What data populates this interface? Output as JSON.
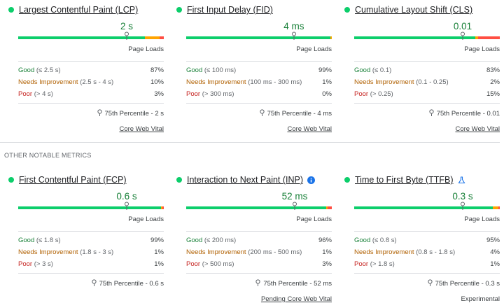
{
  "section_label": "OTHER NOTABLE METRICS",
  "colors": {
    "good": "#0cce6b",
    "ni": "#ffa400",
    "poor": "#ff4e42"
  },
  "metrics": [
    {
      "title": "Largest Contentful Paint (LCP)",
      "value": "2 s",
      "dist": {
        "good": 87,
        "ni": 10,
        "poor": 3
      },
      "marker": 0.745,
      "loads": "Page Loads",
      "good": "Good",
      "good_range": "(≤ 2.5 s)",
      "good_pct": "87%",
      "ni": "Needs Improvement",
      "ni_range": "(2.5 s - 4 s)",
      "ni_pct": "10%",
      "poor": "Poor",
      "poor_range": "(> 4 s)",
      "poor_pct": "3%",
      "percentile": "75th Percentile - 2 s",
      "link": "Core Web Vital",
      "link_underline": true
    },
    {
      "title": "First Input Delay (FID)",
      "value": "4 ms",
      "dist": {
        "good": 99,
        "ni": 1,
        "poor": 0
      },
      "marker": 0.74,
      "loads": "Page Loads",
      "good": "Good",
      "good_range": "(≤ 100 ms)",
      "good_pct": "99%",
      "ni": "Needs Improvement",
      "ni_range": "(100 ms - 300 ms)",
      "ni_pct": "1%",
      "poor": "Poor",
      "poor_range": "(> 300 ms)",
      "poor_pct": "0%",
      "percentile": "75th Percentile - 4 ms",
      "link": "Core Web Vital",
      "link_underline": true
    },
    {
      "title": "Cumulative Layout Shift (CLS)",
      "value": "0.01",
      "dist": {
        "good": 83,
        "ni": 2,
        "poor": 15
      },
      "marker": 0.745,
      "loads": "Page Loads",
      "good": "Good",
      "good_range": "(≤ 0.1)",
      "good_pct": "83%",
      "ni": "Needs Improvement",
      "ni_range": "(0.1 - 0.25)",
      "ni_pct": "2%",
      "poor": "Poor",
      "poor_range": "(> 0.25)",
      "poor_pct": "15%",
      "percentile": "75th Percentile - 0.01",
      "link": "Core Web Vital",
      "link_underline": true
    },
    {
      "title": "First Contentful Paint (FCP)",
      "value": "0.6 s",
      "dist": {
        "good": 99,
        "ni": 1,
        "poor": 1
      },
      "marker": 0.745,
      "loads": "Page Loads",
      "good": "Good",
      "good_range": "(≤ 1.8 s)",
      "good_pct": "99%",
      "ni": "Needs Improvement",
      "ni_range": "(1.8 s - 3 s)",
      "ni_pct": "1%",
      "poor": "Poor",
      "poor_range": "(> 3 s)",
      "poor_pct": "1%",
      "percentile": "75th Percentile - 0.6 s",
      "link": "",
      "link_underline": false
    },
    {
      "title": "Interaction to Next Paint (INP)",
      "value": "52 ms",
      "info": true,
      "dist": {
        "good": 96,
        "ni": 1,
        "poor": 3
      },
      "marker": 0.745,
      "loads": "Page Loads",
      "good": "Good",
      "good_range": "(≤ 200 ms)",
      "good_pct": "96%",
      "ni": "Needs Improvement",
      "ni_range": "(200 ms - 500 ms)",
      "ni_pct": "1%",
      "poor": "Poor",
      "poor_range": "(> 500 ms)",
      "poor_pct": "3%",
      "percentile": "75th Percentile - 52 ms",
      "link": "Pending Core Web Vital",
      "link_underline": true
    },
    {
      "title": "Time to First Byte (TTFB)",
      "value": "0.3 s",
      "flask": true,
      "dist": {
        "good": 95,
        "ni": 4,
        "poor": 1
      },
      "marker": 0.745,
      "loads": "Page Loads",
      "good": "Good",
      "good_range": "(≤ 0.8 s)",
      "good_pct": "95%",
      "ni": "Needs Improvement",
      "ni_range": "(0.8 s - 1.8 s)",
      "ni_pct": "4%",
      "poor": "Poor",
      "poor_range": "(> 1.8 s)",
      "poor_pct": "1%",
      "percentile": "75th Percentile - 0.3 s",
      "link": "Experimental",
      "link_underline": false
    }
  ]
}
